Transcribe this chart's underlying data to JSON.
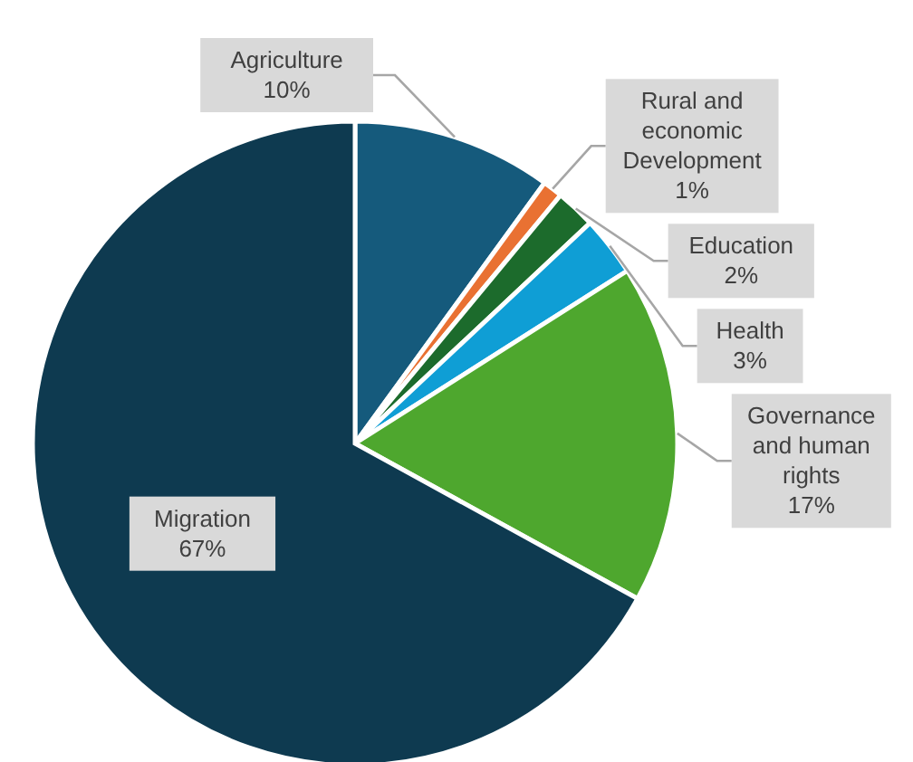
{
  "chart_data": {
    "type": "pie",
    "categories": [
      "Agriculture",
      "Rural and economic Development",
      "Education",
      "Health",
      "Governance and human rights",
      "Migration"
    ],
    "values": [
      10,
      1,
      2,
      3,
      17,
      67
    ],
    "value_labels": [
      "10%",
      "1%",
      "2%",
      "3%",
      "17%",
      "67%"
    ],
    "colors": [
      "#155a7c",
      "#e97132",
      "#1c6b2c",
      "#0f9ed5",
      "#4ea72e",
      "#0e3a50"
    ]
  }
}
